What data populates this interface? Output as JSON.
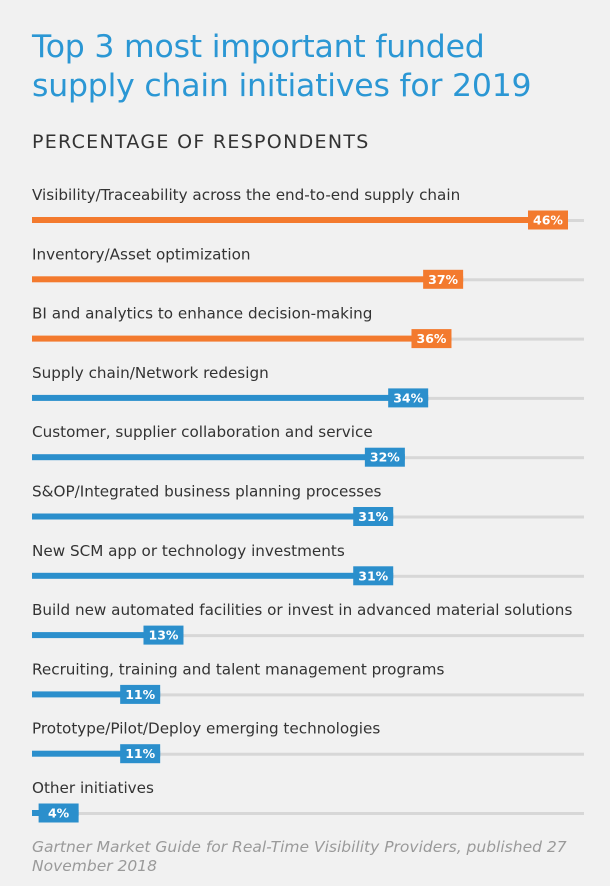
{
  "chart_data": {
    "type": "bar",
    "orientation": "horizontal",
    "title": "Top 3 most important funded supply chain initiatives for 2019",
    "subtitle": "PERCENTAGE OF RESPONDENTS",
    "source": "Gartner Market Guide for Real-Time Visibility Providers, published 27 November 2018",
    "categories": [
      "Visibility/Traceability across the end-to-end supply chain",
      "Inventory/Asset optimization",
      "BI and analytics to enhance decision-making",
      "Supply chain/Network redesign",
      "Customer, supplier collaboration and service",
      "S&OP/Integrated business planning processes",
      "New SCM app or technology investments",
      "Build new automated facilities or invest in advanced material solutions",
      "Recruiting, training and talent management programs",
      "Prototype/Pilot/Deploy emerging technologies",
      "Other initiatives"
    ],
    "values": [
      46,
      37,
      36,
      34,
      32,
      31,
      31,
      13,
      11,
      11,
      4
    ],
    "value_labels": [
      "46%",
      "37%",
      "36%",
      "34%",
      "32%",
      "31%",
      "31%",
      "13%",
      "11%",
      "11%",
      "4%"
    ],
    "highlight_count": 3,
    "xlim": [
      0,
      50
    ],
    "grid": false,
    "colors": {
      "highlight": "#f37a2e",
      "normal": "#2b8fcc",
      "track": "#d7d7d7",
      "title": "#2b97d4"
    }
  }
}
